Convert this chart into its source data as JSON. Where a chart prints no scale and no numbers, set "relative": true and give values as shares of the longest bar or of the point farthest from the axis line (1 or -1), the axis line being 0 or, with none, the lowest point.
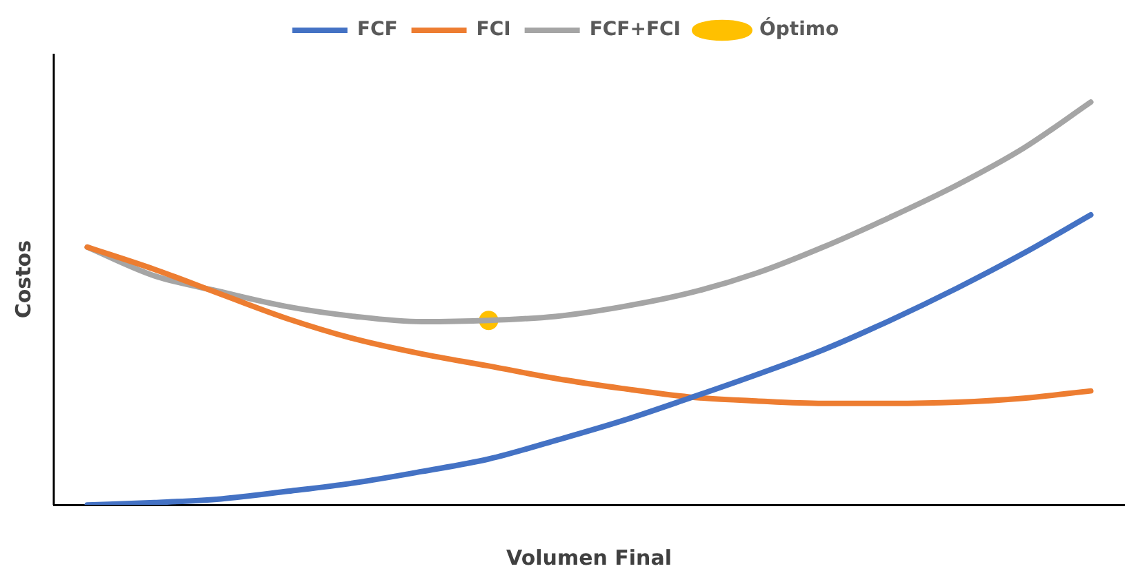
{
  "chart_data": {
    "type": "line",
    "relative": true,
    "xlabel": "Volumen Final",
    "ylabel": "Costos",
    "legend": "top",
    "marker": "none",
    "line_style": "solid",
    "categories": [
      null,
      null,
      null,
      null,
      null,
      null,
      null,
      null,
      null,
      null,
      null,
      null,
      null,
      null,
      null,
      null
    ],
    "series": [
      {
        "name": "FCF",
        "color": "#4472c4",
        "values": [
          0,
          0.006,
          0.015,
          0.034,
          0.055,
          0.083,
          0.114,
          0.16,
          0.209,
          0.265,
          0.323,
          0.385,
          0.458,
          0.538,
          0.625,
          0.72
        ]
      },
      {
        "name": "FCI",
        "color": "#ed7d31",
        "values": [
          0.64,
          0.585,
          0.523,
          0.462,
          0.412,
          0.375,
          0.345,
          0.314,
          0.289,
          0.268,
          0.258,
          0.252,
          0.252,
          0.255,
          0.265,
          0.283
        ]
      },
      {
        "name": "FCF+FCI",
        "color": "#a5a5a5",
        "values": [
          0.64,
          0.569,
          0.529,
          0.492,
          0.468,
          0.455,
          0.458,
          0.468,
          0.492,
          0.526,
          0.575,
          0.64,
          0.714,
          0.794,
          0.886,
          1
        ]
      },
      {
        "name": "Óptimo",
        "color": "#ffc000",
        "type": "line",
        "marker": "circle",
        "values": [
          null,
          null,
          null,
          null,
          null,
          null,
          0.458,
          null,
          null,
          null,
          null,
          null,
          null,
          null,
          null,
          null
        ]
      }
    ]
  }
}
